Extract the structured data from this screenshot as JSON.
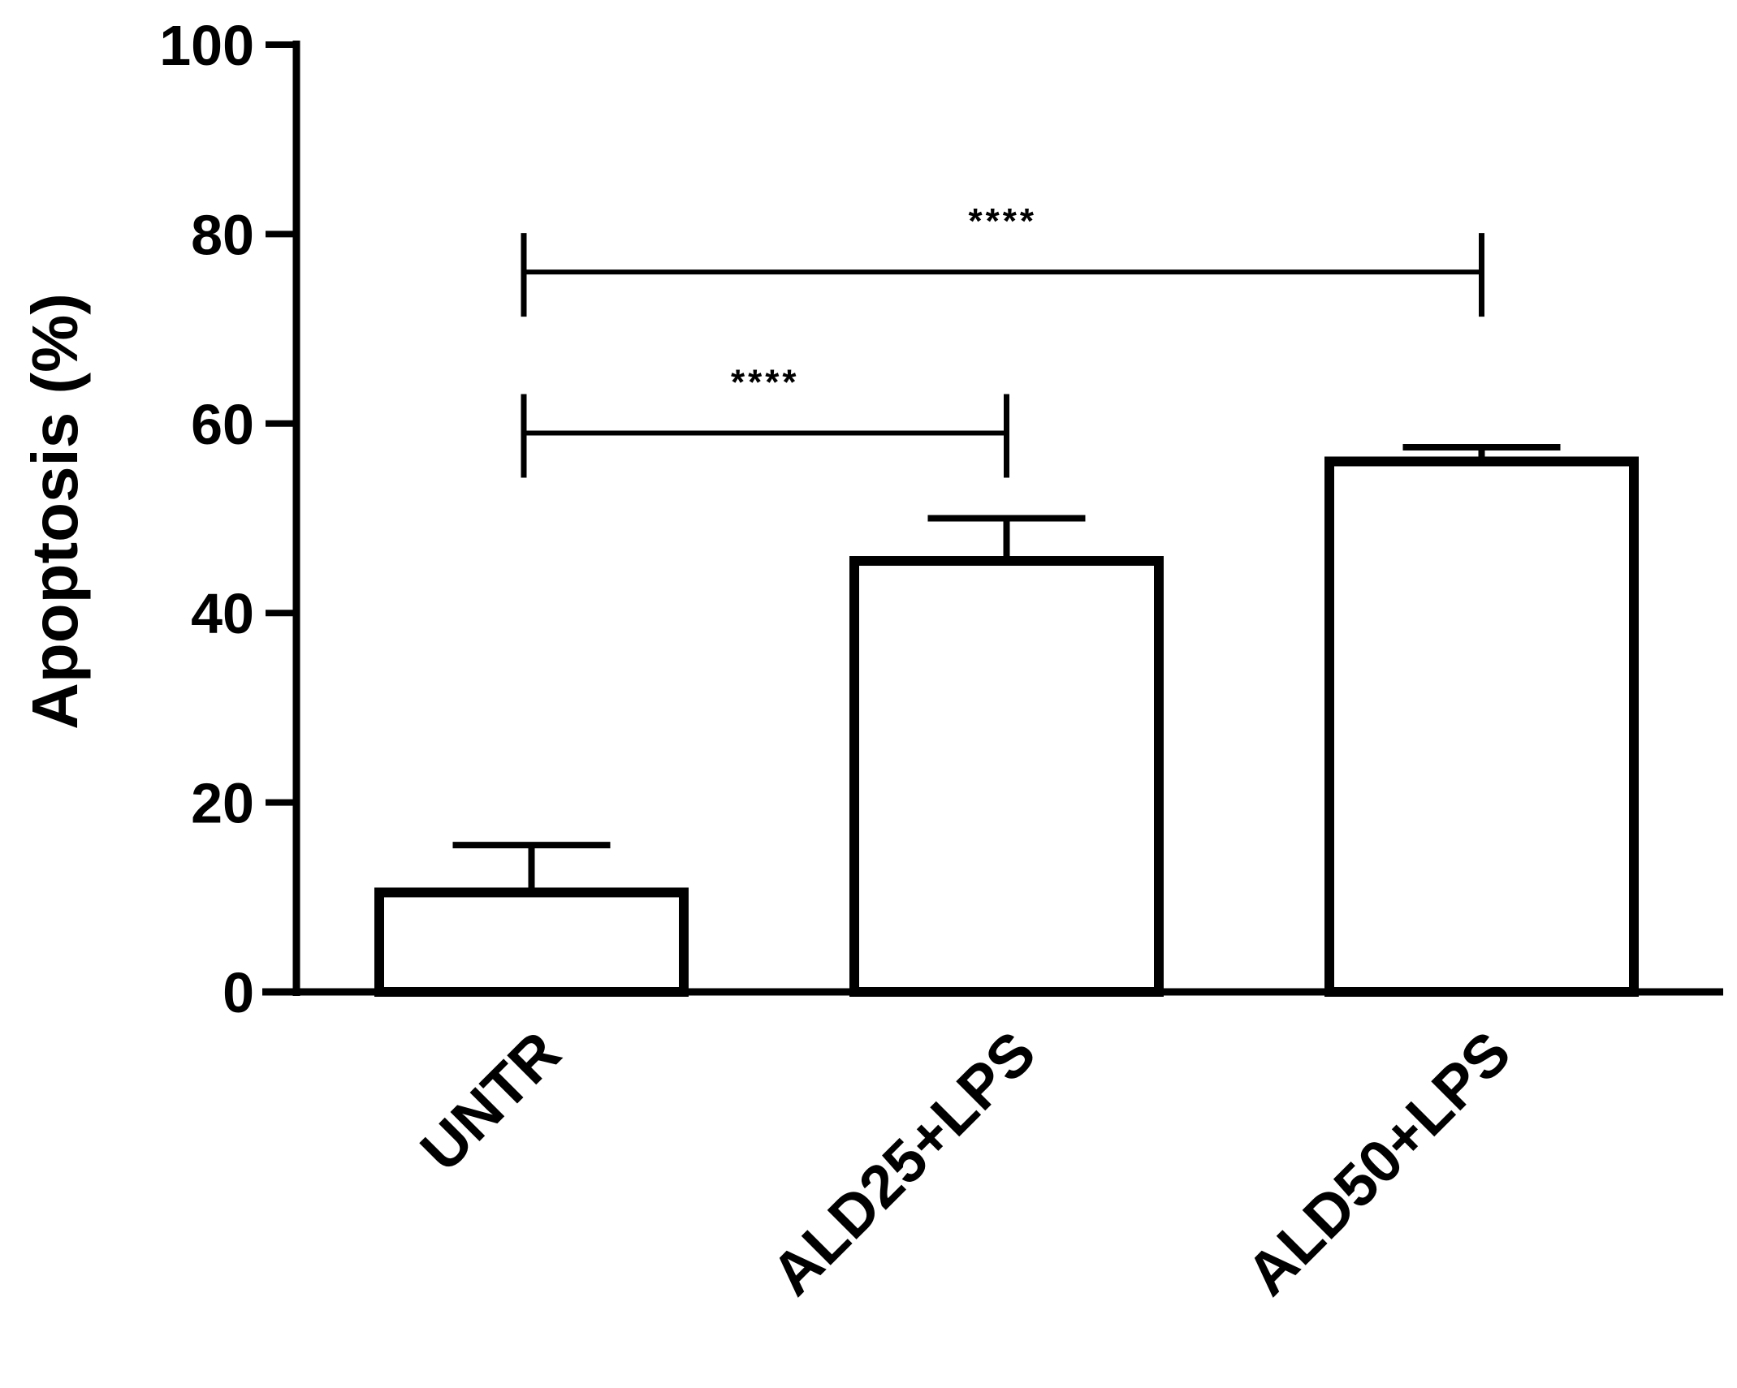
{
  "chart_data": {
    "type": "bar",
    "categories": [
      "UNTR",
      "ALD25+LPS",
      "ALD50+LPS"
    ],
    "values": [
      10.5,
      45.5,
      56
    ],
    "errors": [
      5,
      4.5,
      1.5
    ],
    "ylabel": "Apoptosis (%)",
    "ylim": [
      0,
      100
    ],
    "yticks": [
      0,
      20,
      40,
      60,
      80,
      100
    ],
    "grid": false,
    "legend": "none",
    "significance": [
      {
        "from": 0,
        "to": 2,
        "label": "****",
        "y": 76
      },
      {
        "from": 0,
        "to": 1,
        "label": "****",
        "y": 59
      }
    ],
    "colors": {
      "bar_fill": "#ffffff",
      "stroke": "#000000"
    }
  }
}
